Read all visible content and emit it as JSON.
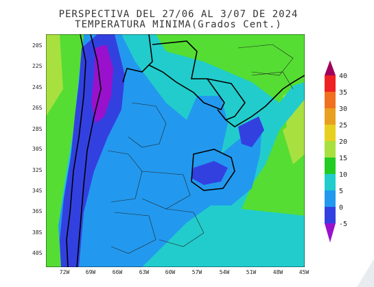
{
  "title": {
    "line1": "PERSPECTIVA DEL 27/06 AL 3/07 DE 2024",
    "line2": "TEMPERATURA MINIMA(Grados Cent.)"
  },
  "axes": {
    "x_ticks": [
      "72W",
      "69W",
      "66W",
      "63W",
      "60W",
      "57W",
      "54W",
      "51W",
      "48W",
      "45W"
    ],
    "y_ticks": [
      "20S",
      "22S",
      "24S",
      "26S",
      "28S",
      "30S",
      "32S",
      "34S",
      "36S",
      "38S",
      "40S"
    ]
  },
  "colorbar": {
    "labels": [
      "40",
      "35",
      "30",
      "25",
      "20",
      "15",
      "10",
      "5",
      "0",
      "-5"
    ],
    "colors": [
      "#a0005a",
      "#ee2222",
      "#f07020",
      "#e8a020",
      "#e8d020",
      "#a8e040",
      "#22cc22",
      "#22cccc",
      "#2299ee",
      "#3340e0",
      "#9911cc"
    ]
  },
  "map": {
    "region": "South America (Argentina, Uruguay, Paraguay, S Brazil)",
    "dominant_colors": {
      "warm": "#55dd33",
      "mild": "#22cccc",
      "cool": "#2299ee",
      "cold": "#3340e0",
      "coldest": "#9911cc"
    }
  }
}
